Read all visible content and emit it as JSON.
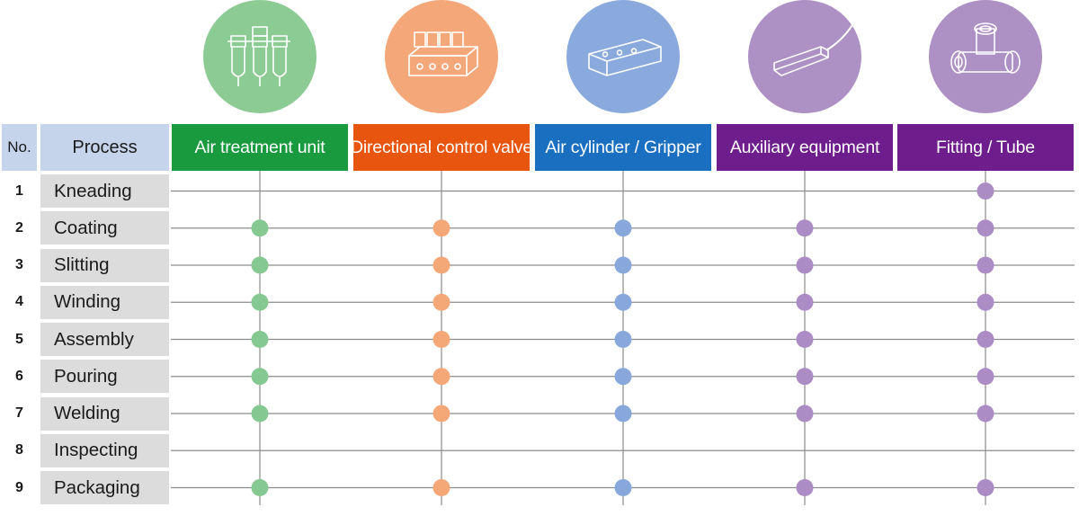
{
  "header": {
    "no_label": "No.",
    "process_label": "Process"
  },
  "categories": [
    {
      "name": "Air treatment unit",
      "header_color": "#1a9a3e",
      "dot_color": "#86c891",
      "circle_color": "#8dcb95",
      "icon": "air-treatment-unit-icon"
    },
    {
      "name": "Directional control valve",
      "header_color": "#e8550f",
      "dot_color": "#f4a877",
      "circle_color": "#f4a87a",
      "icon": "solenoid-valve-icon"
    },
    {
      "name": "Air cylinder / Gripper",
      "header_color": "#1a6fc0",
      "dot_color": "#88a8dc",
      "circle_color": "#8aaade",
      "icon": "air-cylinder-icon"
    },
    {
      "name": "Auxiliary equipment",
      "header_color": "#6e1d8c",
      "dot_color": "#ac8cc4",
      "circle_color": "#ad90c4",
      "icon": "sensor-switch-icon"
    },
    {
      "name": "Fitting / Tube",
      "header_color": "#6e1d8c",
      "dot_color": "#ac8cc4",
      "circle_color": "#ad90c4",
      "icon": "tee-fitting-icon"
    }
  ],
  "processes": [
    {
      "no": "1",
      "name": "Kneading",
      "uses": [
        false,
        false,
        false,
        false,
        true
      ]
    },
    {
      "no": "2",
      "name": "Coating",
      "uses": [
        true,
        true,
        true,
        true,
        true
      ]
    },
    {
      "no": "3",
      "name": "Slitting",
      "uses": [
        true,
        true,
        true,
        true,
        true
      ]
    },
    {
      "no": "4",
      "name": "Winding",
      "uses": [
        true,
        true,
        true,
        true,
        true
      ]
    },
    {
      "no": "5",
      "name": "Assembly",
      "uses": [
        true,
        true,
        true,
        true,
        true
      ]
    },
    {
      "no": "6",
      "name": "Pouring",
      "uses": [
        true,
        true,
        true,
        true,
        true
      ]
    },
    {
      "no": "7",
      "name": "Welding",
      "uses": [
        true,
        true,
        true,
        true,
        true
      ]
    },
    {
      "no": "8",
      "name": "Inspecting",
      "uses": [
        false,
        false,
        false,
        false,
        false
      ]
    },
    {
      "no": "9",
      "name": "Packaging",
      "uses": [
        true,
        true,
        true,
        true,
        true
      ]
    }
  ],
  "colors": {
    "grid_line": "#8c8c8c",
    "process_cell": "#dcdcdc",
    "header_cell": "#c5d4eb"
  }
}
